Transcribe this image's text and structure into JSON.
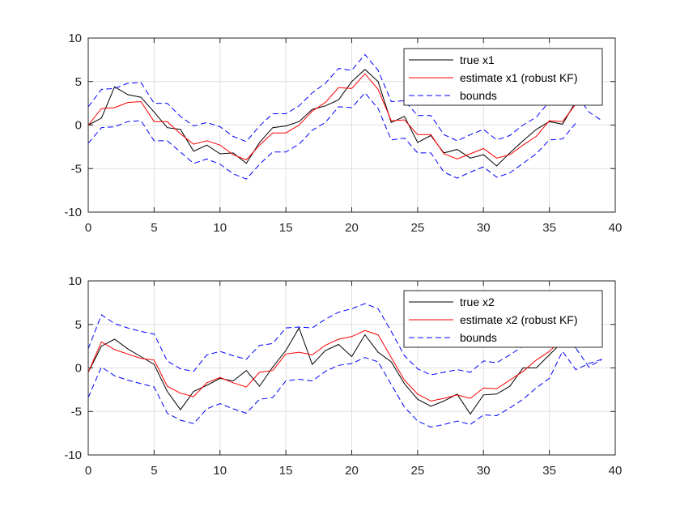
{
  "chart_data": [
    {
      "type": "line",
      "xlim": [
        0,
        40
      ],
      "ylim": [
        -10,
        10
      ],
      "xticks": [
        "0",
        "5",
        "10",
        "15",
        "20",
        "25",
        "30",
        "35",
        "40"
      ],
      "yticks": [
        "10",
        "5",
        "0",
        "-5",
        "-10"
      ],
      "grid": true,
      "legend_position": "top-right",
      "x": [
        0,
        1,
        2,
        3,
        4,
        5,
        6,
        7,
        8,
        9,
        10,
        11,
        12,
        13,
        14,
        15,
        16,
        17,
        18,
        19,
        20,
        21,
        22,
        23,
        24,
        25,
        26,
        27,
        28,
        29,
        30,
        31,
        32,
        33,
        34,
        35,
        36,
        37,
        38,
        39
      ],
      "series": [
        {
          "name": "true x1",
          "color": "#000000",
          "style": "solid",
          "values": [
            0,
            0.8,
            4.4,
            3.5,
            3.2,
            1.5,
            -0.3,
            -0.5,
            -3.0,
            -2.3,
            -3.3,
            -3.2,
            -4.4,
            -2.0,
            -0.3,
            -0.1,
            0.4,
            1.8,
            2.2,
            2.9,
            5.0,
            6.4,
            5.0,
            0.3,
            1.0,
            -2.0,
            -1.2,
            -3.2,
            -2.8,
            -3.8,
            -3.4,
            -4.7,
            -3.2,
            -1.8,
            -0.5,
            0.4,
            0.1,
            2.7,
            null,
            null
          ]
        },
        {
          "name": "estimate x1 (robust KF)",
          "color": "#ff0000",
          "style": "solid",
          "values": [
            0,
            1.9,
            2.0,
            2.6,
            2.7,
            0.4,
            0.4,
            -1.0,
            -2.2,
            -1.8,
            -2.3,
            -3.4,
            -4.0,
            -2.3,
            -0.9,
            -0.9,
            0.0,
            1.6,
            2.6,
            4.3,
            4.2,
            5.9,
            4.1,
            0.5,
            0.6,
            -1.1,
            -1.1,
            -3.3,
            -3.9,
            -3.3,
            -2.7,
            -3.8,
            -3.4,
            -2.3,
            -1.3,
            0.5,
            0.4,
            2.4,
            null,
            null
          ]
        },
        {
          "name": "bounds",
          "color": "#0000ff",
          "style": "dashed",
          "values": [
            2.1,
            4.1,
            4.2,
            4.8,
            4.9,
            2.5,
            2.5,
            1.0,
            -0.1,
            0.3,
            -0.2,
            -1.3,
            -1.9,
            -0.1,
            1.3,
            1.3,
            2.2,
            3.7,
            4.8,
            6.5,
            6.3,
            8.1,
            6.3,
            2.7,
            2.8,
            1.1,
            1.1,
            -1.1,
            -1.8,
            -1.1,
            -0.5,
            -1.7,
            -1.2,
            0.0,
            0.9,
            2.7,
            2.7,
            3.7,
            1.5,
            0.5
          ]
        },
        {
          "name": "",
          "color": "#0000ff",
          "style": "dashed",
          "values": [
            -2.1,
            -0.3,
            -0.2,
            0.4,
            0.5,
            -1.8,
            -1.8,
            -3.1,
            -4.4,
            -3.9,
            -4.5,
            -5.6,
            -6.2,
            -4.5,
            -3.1,
            -3.1,
            -2.2,
            -0.6,
            0.3,
            2.1,
            2.0,
            3.7,
            1.9,
            -1.7,
            -1.5,
            -3.2,
            -3.2,
            -5.4,
            -6.1,
            -5.4,
            -4.8,
            -6.0,
            -5.5,
            -4.4,
            -3.3,
            -1.7,
            -1.6,
            0.2,
            null,
            null
          ]
        }
      ]
    },
    {
      "type": "line",
      "xlim": [
        0,
        40
      ],
      "ylim": [
        -10,
        10
      ],
      "xticks": [
        "0",
        "5",
        "10",
        "15",
        "20",
        "25",
        "30",
        "35",
        "40"
      ],
      "yticks": [
        "10",
        "5",
        "0",
        "-5",
        "-10"
      ],
      "grid": true,
      "legend_position": "top-right",
      "x": [
        0,
        1,
        2,
        3,
        4,
        5,
        6,
        7,
        8,
        9,
        10,
        11,
        12,
        13,
        14,
        15,
        16,
        17,
        18,
        19,
        20,
        21,
        22,
        23,
        24,
        25,
        26,
        27,
        28,
        29,
        30,
        31,
        32,
        33,
        34,
        35,
        36,
        37,
        38,
        39
      ],
      "series": [
        {
          "name": "true x2",
          "color": "#000000",
          "style": "solid",
          "values": [
            -0.5,
            2.5,
            3.3,
            2.2,
            1.3,
            0.4,
            -2.7,
            -4.8,
            -2.7,
            -2.0,
            -1.2,
            -1.5,
            -0.3,
            -2.1,
            0.1,
            2.0,
            4.6,
            0.4,
            2.0,
            2.7,
            1.3,
            3.8,
            1.8,
            0.7,
            -1.8,
            -3.6,
            -4.4,
            -3.8,
            -3.0,
            -5.3,
            -3.1,
            -3.0,
            -2.1,
            0.0,
            0.0,
            1.5,
            3.0,
            2.3,
            null,
            null
          ]
        },
        {
          "name": "estimate x2 (robust KF)",
          "color": "#ff0000",
          "style": "solid",
          "values": [
            -0.5,
            3.0,
            2.1,
            1.6,
            1.1,
            0.9,
            -2.1,
            -2.9,
            -3.3,
            -1.7,
            -1.1,
            -1.7,
            -2.2,
            -0.5,
            -0.3,
            1.6,
            1.8,
            1.5,
            2.6,
            3.3,
            3.6,
            4.3,
            3.8,
            1.2,
            -1.4,
            -3.0,
            -3.8,
            -3.5,
            -3.1,
            -3.5,
            -2.3,
            -2.4,
            -1.4,
            -0.4,
            0.9,
            1.9,
            3.3,
            null,
            null,
            null
          ]
        },
        {
          "name": "bounds",
          "color": "#0000ff",
          "style": "dashed",
          "values": [
            2.2,
            6.1,
            5.1,
            4.6,
            4.2,
            3.9,
            0.8,
            -0.1,
            -0.4,
            1.5,
            1.9,
            1.4,
            1.0,
            2.6,
            2.8,
            4.6,
            4.7,
            4.6,
            5.6,
            6.4,
            6.8,
            7.4,
            6.8,
            4.2,
            1.4,
            -0.1,
            -0.8,
            -0.5,
            -0.2,
            -0.5,
            0.8,
            0.6,
            1.5,
            2.5,
            3.8,
            4.8,
            3.8,
            2.3,
            0.1,
            1.0
          ]
        },
        {
          "name": "",
          "color": "#0000ff",
          "style": "dashed",
          "values": [
            -3.4,
            0.1,
            -0.9,
            -1.4,
            -1.8,
            -2.2,
            -5.2,
            -6.0,
            -6.4,
            -4.7,
            -4.1,
            -4.7,
            -5.2,
            -3.6,
            -3.4,
            -1.5,
            -1.3,
            -1.5,
            -0.4,
            0.3,
            0.5,
            1.2,
            0.7,
            -1.9,
            -4.5,
            -6.1,
            -6.8,
            -6.5,
            -6.1,
            -6.5,
            -5.4,
            -5.5,
            -4.6,
            -3.6,
            -2.3,
            -1.2,
            1.9,
            -0.2,
            0.5,
            1.0
          ]
        }
      ]
    }
  ]
}
